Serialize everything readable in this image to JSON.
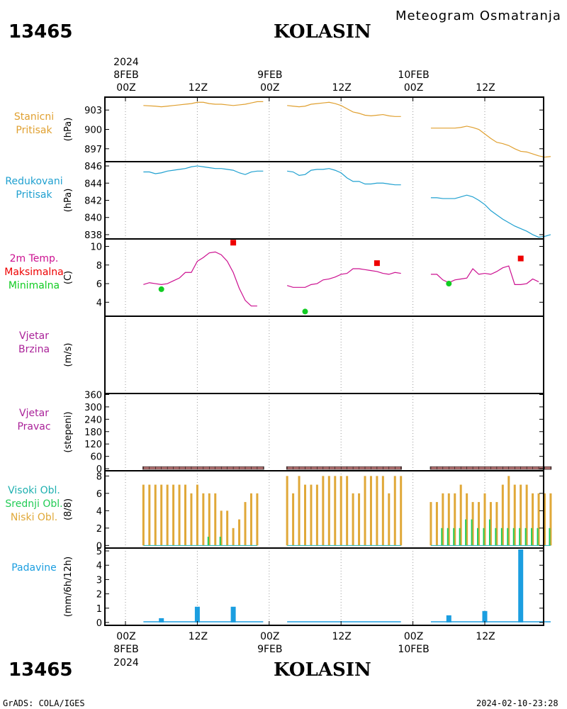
{
  "header": {
    "station_id": "13465",
    "station_name": "KOLASIN",
    "chart_title": "Meteogram Osmatranja"
  },
  "footer": {
    "station_id": "13465",
    "station_name": "KOLASIN",
    "left_note": "GrADS: COLA/IGES",
    "timestamp": "2024-02-10-23:28"
  },
  "time_axis": {
    "top_year": "2024",
    "bottom_year": "2024",
    "hours": [
      "00Z",
      "12Z",
      "00Z",
      "12Z",
      "00Z",
      "12Z"
    ],
    "dates": [
      "8FEB",
      "9FEB",
      "10FEB"
    ]
  },
  "colors": {
    "station_pressure": "#e0a030",
    "reduced_pressure": "#1fa0d0",
    "temperature": "#cc1090",
    "t_max": "#ee0000",
    "t_min": "#11cc22",
    "wind": "#aa2299",
    "cloud_high": "#1fb0b0",
    "cloud_mid": "#22cc55",
    "cloud_low": "#e0a838",
    "precip": "#1b9ee0",
    "wind_dir": "#b07070"
  },
  "chart_data": [
    {
      "type": "line",
      "id": "station-pressure",
      "labels": [
        "Stanicni",
        "Pritisak"
      ],
      "ylabel": "(hPa)",
      "ylim": [
        895,
        905
      ],
      "yticks": [
        897,
        900,
        903
      ],
      "x_unit": "hours since 8FEB 00Z",
      "segments": [
        [
          [
            3,
            903.7
          ],
          [
            5,
            903.6
          ],
          [
            6,
            903.5
          ],
          [
            7,
            903.6
          ],
          [
            8,
            903.7
          ],
          [
            9,
            903.8
          ],
          [
            10,
            903.9
          ],
          [
            11,
            904.0
          ],
          [
            12,
            904.2
          ],
          [
            13,
            904.2
          ],
          [
            14,
            904.0
          ],
          [
            15,
            903.9
          ],
          [
            16,
            903.9
          ],
          [
            17,
            903.8
          ],
          [
            18,
            903.7
          ],
          [
            19,
            903.8
          ],
          [
            20,
            903.9
          ],
          [
            21,
            904.1
          ],
          [
            22,
            904.3
          ],
          [
            23,
            904.3
          ]
        ],
        [
          [
            27,
            903.7
          ],
          [
            28,
            903.6
          ],
          [
            29,
            903.5
          ],
          [
            30,
            903.6
          ],
          [
            31,
            903.9
          ],
          [
            32,
            904.0
          ],
          [
            33,
            904.1
          ],
          [
            34,
            904.2
          ],
          [
            35,
            904.0
          ],
          [
            36,
            903.7
          ],
          [
            37,
            903.2
          ],
          [
            38,
            902.7
          ],
          [
            39,
            902.5
          ],
          [
            40,
            902.2
          ],
          [
            41,
            902.1
          ],
          [
            42,
            902.2
          ],
          [
            43,
            902.3
          ],
          [
            44,
            902.1
          ],
          [
            45,
            902.0
          ],
          [
            46,
            902.0
          ]
        ],
        [
          [
            51,
            900.2
          ],
          [
            52,
            900.2
          ],
          [
            53,
            900.2
          ],
          [
            54,
            900.2
          ],
          [
            55,
            900.2
          ],
          [
            56,
            900.3
          ],
          [
            57,
            900.5
          ],
          [
            58,
            900.3
          ],
          [
            59,
            900.0
          ],
          [
            60,
            899.3
          ],
          [
            61,
            898.6
          ],
          [
            62,
            898.0
          ],
          [
            63,
            897.8
          ],
          [
            64,
            897.5
          ],
          [
            65,
            897.0
          ],
          [
            66,
            896.6
          ],
          [
            67,
            896.5
          ],
          [
            68,
            896.2
          ],
          [
            69,
            895.9
          ],
          [
            70,
            895.7
          ],
          [
            71,
            895.8
          ]
        ]
      ]
    },
    {
      "type": "line",
      "id": "reduced-pressure",
      "labels": [
        "Redukovani",
        "Pritisak"
      ],
      "ylabel": "(hPa)",
      "ylim": [
        837.5,
        846.5
      ],
      "yticks": [
        838,
        840,
        842,
        844,
        846
      ],
      "x_unit": "hours since 8FEB 00Z",
      "segments": [
        [
          [
            3,
            845.3
          ],
          [
            4,
            845.3
          ],
          [
            5,
            845.1
          ],
          [
            6,
            845.2
          ],
          [
            7,
            845.4
          ],
          [
            8,
            845.5
          ],
          [
            9,
            845.6
          ],
          [
            10,
            845.7
          ],
          [
            11,
            845.9
          ],
          [
            12,
            846.0
          ],
          [
            13,
            845.9
          ],
          [
            14,
            845.8
          ],
          [
            15,
            845.7
          ],
          [
            16,
            845.7
          ],
          [
            17,
            845.6
          ],
          [
            18,
            845.5
          ],
          [
            19,
            845.2
          ],
          [
            20,
            845.0
          ],
          [
            21,
            845.3
          ],
          [
            22,
            845.4
          ],
          [
            23,
            845.4
          ]
        ],
        [
          [
            27,
            845.4
          ],
          [
            28,
            845.3
          ],
          [
            29,
            844.9
          ],
          [
            30,
            845.0
          ],
          [
            31,
            845.5
          ],
          [
            32,
            845.6
          ],
          [
            33,
            845.6
          ],
          [
            34,
            845.7
          ],
          [
            35,
            845.5
          ],
          [
            36,
            845.2
          ],
          [
            37,
            844.6
          ],
          [
            38,
            844.2
          ],
          [
            39,
            844.2
          ],
          [
            40,
            843.9
          ],
          [
            41,
            843.9
          ],
          [
            42,
            844.0
          ],
          [
            43,
            844.0
          ],
          [
            44,
            843.9
          ],
          [
            45,
            843.8
          ],
          [
            46,
            843.8
          ]
        ],
        [
          [
            51,
            842.3
          ],
          [
            52,
            842.3
          ],
          [
            53,
            842.2
          ],
          [
            54,
            842.2
          ],
          [
            55,
            842.2
          ],
          [
            56,
            842.4
          ],
          [
            57,
            842.6
          ],
          [
            58,
            842.4
          ],
          [
            59,
            842.0
          ],
          [
            60,
            841.5
          ],
          [
            61,
            840.8
          ],
          [
            62,
            840.3
          ],
          [
            63,
            839.8
          ],
          [
            64,
            839.4
          ],
          [
            65,
            839.0
          ],
          [
            66,
            838.7
          ],
          [
            67,
            838.4
          ],
          [
            68,
            838.0
          ],
          [
            69,
            837.7
          ],
          [
            70,
            837.8
          ],
          [
            71,
            838.0
          ]
        ]
      ]
    },
    {
      "type": "line",
      "id": "temperature",
      "labels": [
        "2m Temp.",
        "Maksimalna",
        "Minimalna"
      ],
      "ylabel": "(C)",
      "ylim": [
        2.5,
        10.8
      ],
      "yticks": [
        4,
        6,
        8,
        10
      ],
      "x_unit": "hours since 8FEB 00Z",
      "segments": [
        [
          [
            3,
            5.9
          ],
          [
            4,
            6.1
          ],
          [
            5,
            6.0
          ],
          [
            6,
            5.9
          ],
          [
            7,
            6.0
          ],
          [
            8,
            6.3
          ],
          [
            9,
            6.6
          ],
          [
            10,
            7.2
          ],
          [
            11,
            7.2
          ],
          [
            12,
            8.4
          ],
          [
            13,
            8.8
          ],
          [
            14,
            9.3
          ],
          [
            15,
            9.4
          ],
          [
            16,
            9.1
          ],
          [
            17,
            8.4
          ],
          [
            18,
            7.2
          ],
          [
            19,
            5.5
          ],
          [
            20,
            4.2
          ],
          [
            21,
            3.6
          ],
          [
            22,
            3.6
          ]
        ],
        [
          [
            27,
            5.8
          ],
          [
            28,
            5.6
          ],
          [
            29,
            5.6
          ],
          [
            30,
            5.6
          ],
          [
            31,
            5.9
          ],
          [
            32,
            6.0
          ],
          [
            33,
            6.4
          ],
          [
            34,
            6.5
          ],
          [
            35,
            6.7
          ],
          [
            36,
            7.0
          ],
          [
            37,
            7.1
          ],
          [
            38,
            7.6
          ],
          [
            39,
            7.6
          ],
          [
            40,
            7.5
          ],
          [
            41,
            7.4
          ],
          [
            42,
            7.3
          ],
          [
            43,
            7.1
          ],
          [
            44,
            7.0
          ],
          [
            45,
            7.2
          ],
          [
            46,
            7.1
          ]
        ],
        [
          [
            51,
            7.0
          ],
          [
            52,
            7.0
          ],
          [
            53,
            6.4
          ],
          [
            54,
            6.1
          ],
          [
            55,
            6.4
          ],
          [
            56,
            6.5
          ],
          [
            57,
            6.6
          ],
          [
            58,
            7.6
          ],
          [
            59,
            7.0
          ],
          [
            60,
            7.1
          ],
          [
            61,
            7.0
          ],
          [
            62,
            7.3
          ],
          [
            63,
            7.7
          ],
          [
            64,
            7.9
          ],
          [
            65,
            5.9
          ],
          [
            66,
            5.9
          ],
          [
            67,
            6.0
          ],
          [
            68,
            6.5
          ],
          [
            69,
            6.2
          ]
        ]
      ],
      "max_points": [
        [
          18,
          10.4
        ],
        [
          42,
          8.2
        ],
        [
          66,
          8.7
        ]
      ],
      "min_points": [
        [
          6,
          5.4
        ],
        [
          30,
          3.0
        ],
        [
          54,
          6.0
        ]
      ]
    },
    {
      "type": "line",
      "id": "wind-speed",
      "labels": [
        "Vjetar",
        "Brzina"
      ],
      "ylabel": "(m/s)",
      "segments": []
    },
    {
      "type": "bar",
      "id": "wind-direction",
      "labels": [
        "Vjetar",
        "Pravac"
      ],
      "ylabel": "(stepeni)",
      "ylim": [
        -10,
        365
      ],
      "yticks": [
        0,
        60,
        120,
        180,
        240,
        300,
        360
      ],
      "x_unit": "hours since 8FEB 00Z",
      "ranges": [
        [
          3,
          23
        ],
        [
          27,
          46
        ],
        [
          51,
          71
        ]
      ],
      "value": 0
    },
    {
      "type": "bar",
      "id": "clouds",
      "labels": [
        "Visoki Obl.",
        "Srednji Obl.",
        "Niski Obl."
      ],
      "ylabel": "(8/8)",
      "ylim": [
        -0.3,
        8.6
      ],
      "yticks": [
        0,
        2,
        4,
        6,
        8
      ],
      "x_unit": "hours since 8FEB 00Z",
      "low_x": [
        3,
        4,
        5,
        6,
        7,
        8,
        9,
        10,
        11,
        12,
        13,
        14,
        15,
        16,
        17,
        18,
        19,
        20,
        21,
        22,
        27,
        28,
        29,
        30,
        31,
        32,
        33,
        34,
        35,
        36,
        37,
        38,
        39,
        40,
        41,
        42,
        43,
        44,
        45,
        46,
        51,
        52,
        53,
        54,
        55,
        56,
        57,
        58,
        59,
        60,
        61,
        62,
        63,
        64,
        65,
        66,
        67,
        68,
        69,
        70,
        71
      ],
      "low": [
        7,
        7,
        7,
        7,
        7,
        7,
        7,
        7,
        6,
        7,
        6,
        6,
        6,
        4,
        4,
        2,
        3,
        5,
        6,
        6,
        8,
        6,
        8,
        7,
        7,
        7,
        8,
        8,
        8,
        8,
        8,
        6,
        6,
        8,
        8,
        8,
        8,
        6,
        8,
        8,
        5,
        5,
        6,
        6,
        6,
        7,
        6,
        5,
        5,
        6,
        5,
        5,
        7,
        8,
        7,
        7,
        7,
        6,
        6,
        6,
        6
      ],
      "mid_x": [
        14,
        16,
        53,
        54,
        55,
        56,
        57,
        58,
        59,
        60,
        61,
        62,
        63,
        64,
        65,
        66,
        67,
        68,
        69,
        70,
        71
      ],
      "mid": [
        1,
        1,
        2,
        2,
        2,
        2,
        3,
        3,
        2,
        2,
        3,
        2,
        2,
        2,
        2,
        2,
        2,
        2,
        2,
        2,
        2
      ]
    },
    {
      "type": "bar",
      "id": "precipitation",
      "labels": [
        "Padavine"
      ],
      "ylabel": "(mm/6h/12h)",
      "ylim": [
        -0.2,
        5.2
      ],
      "yticks": [
        0,
        1,
        2,
        3,
        4,
        5
      ],
      "x_unit": "hours since 8FEB 00Z",
      "x": [
        6,
        12,
        18,
        54,
        60,
        66
      ],
      "values": [
        0.3,
        1.1,
        1.1,
        0.5,
        0.8,
        5.1
      ],
      "trace_ranges": [
        [
          3,
          23
        ],
        [
          27,
          46
        ],
        [
          51,
          71
        ]
      ]
    }
  ]
}
